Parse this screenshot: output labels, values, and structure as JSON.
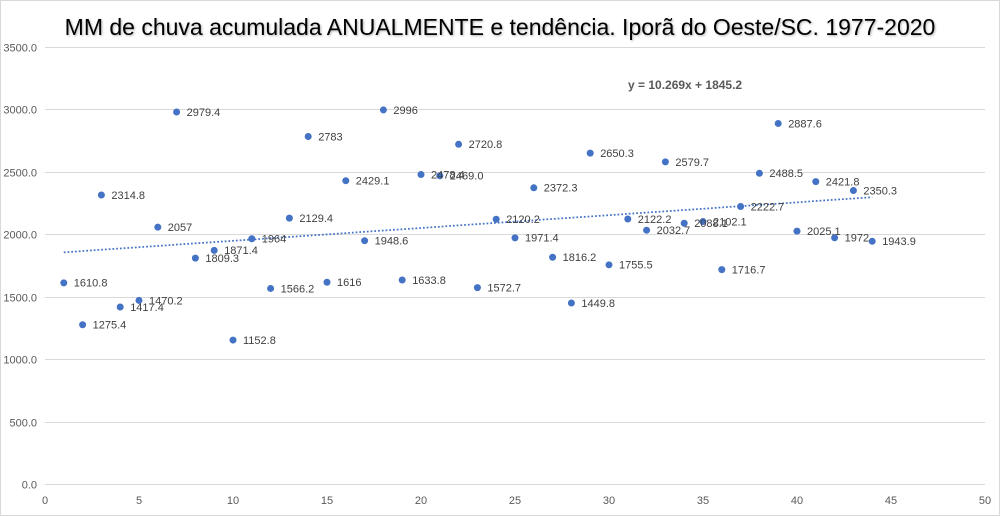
{
  "chart_data": {
    "type": "scatter",
    "title": "MM de chuva acumulada ANUALMENTE e tendência. Iporã do Oeste/SC. 1977-2020",
    "xlabel": "",
    "ylabel": "",
    "xlim": [
      0,
      50
    ],
    "ylim": [
      0,
      3500
    ],
    "x_ticks": [
      0,
      5,
      10,
      15,
      20,
      25,
      30,
      35,
      40,
      45,
      50
    ],
    "x_tick_labels": [
      "0",
      "5",
      "10",
      "15",
      "20",
      "25",
      "30",
      "35",
      "40",
      "45",
      "50"
    ],
    "y_ticks": [
      0,
      500,
      1000,
      1500,
      2000,
      2500,
      3000,
      3500
    ],
    "y_tick_labels": [
      "0.0",
      "500.0",
      "1000.0",
      "1500.0",
      "2000.0",
      "2500.0",
      "3000.0",
      "3500.0"
    ],
    "grid": true,
    "series": [
      {
        "x": [
          1,
          2,
          3,
          4,
          5,
          6,
          7,
          8,
          9,
          10,
          11,
          12,
          13,
          14,
          15,
          16,
          17,
          18,
          19,
          20,
          21,
          22,
          23,
          24,
          25,
          26,
          27,
          28,
          29,
          30,
          31,
          32,
          33,
          34,
          35,
          36,
          37,
          38,
          39,
          40,
          41,
          42,
          43,
          44
        ],
        "y": [
          1610.8,
          1275.4,
          2314.8,
          1417.4,
          1470.2,
          2057,
          2979.4,
          1809.3,
          1871.4,
          1152.8,
          1964,
          1566.2,
          2129.4,
          2783,
          1616,
          2429.1,
          1948.6,
          2996,
          1633.8,
          2478.4,
          2469.0,
          2720.8,
          1572.7,
          2120.2,
          1971.4,
          2372.3,
          1816.2,
          1449.8,
          2650.3,
          1755.5,
          2122.2,
          2032.7,
          2579.7,
          2088.1,
          2102.1,
          1716.7,
          2222.7,
          2488.5,
          2887.6,
          2025.1,
          2421.8,
          1972,
          2350.3,
          1943.9
        ],
        "labels": [
          "1610.8",
          "1275.4",
          "2314.8",
          "1417.4",
          "1470.2",
          "2057",
          "2979.4",
          "1809.3",
          "1871.4",
          "1152.8",
          "1964",
          "1566.2",
          "2129.4",
          "2783",
          "1616",
          "2429.1",
          "1948.6",
          "2996",
          "1633.8",
          "2478.4",
          "2469.0",
          "2720.8",
          "1572.7",
          "2120.2",
          "1971.4",
          "2372.3",
          "1816.2",
          "1449.8",
          "2650.3",
          "1755.5",
          "2122.2",
          "2032.7",
          "2579.7",
          "2088.1",
          "2102.1",
          "1716.7",
          "2222.7",
          "2488.5",
          "2887.6",
          "2025.1",
          "2421.8",
          "1972",
          "2350.3",
          "1943.9"
        ]
      }
    ],
    "trendline": {
      "slope": 10.269,
      "intercept": 1845.2,
      "x_range": [
        1,
        44
      ],
      "equation": "y = 10.269x + 1845.2"
    },
    "colors": {
      "marker": "#4472C4",
      "trendline": "#4472C4",
      "gridline": "#D9D9D9",
      "border": "#D9D9D9"
    }
  }
}
